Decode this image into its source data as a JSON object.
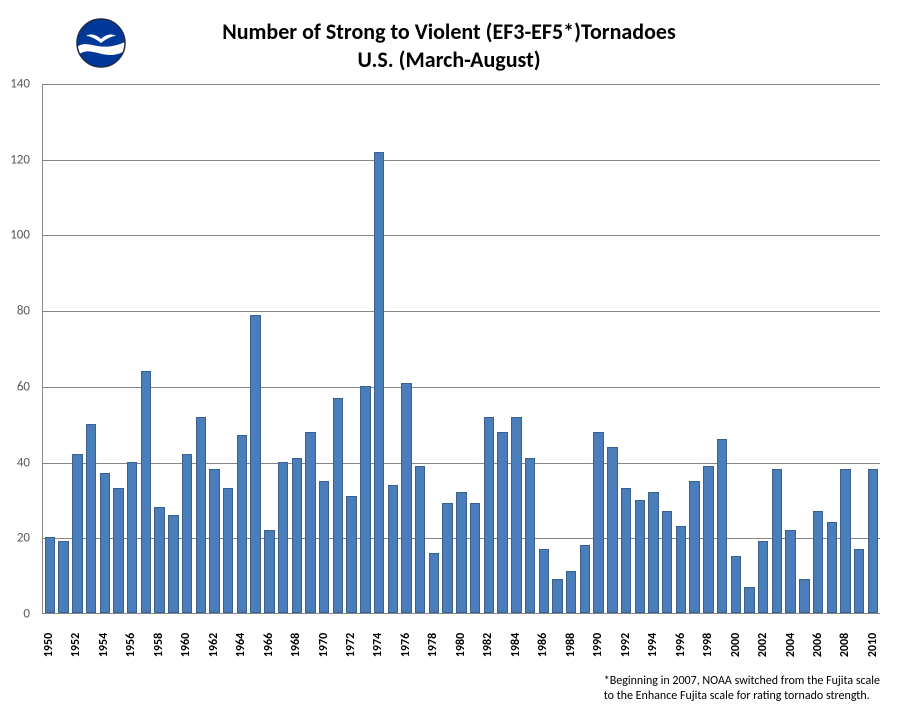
{
  "title": {
    "line1": "Number of Strong to Violent (EF3-EF5*)Tornadoes",
    "line2": "U.S. (March-August)",
    "fontsize": 22,
    "fontweight": "bold",
    "color": "#000000"
  },
  "logo": {
    "name": "noaa-logo",
    "circle_fill": "#00389a",
    "band_fill": "#ffffff",
    "ring_stroke": "#1f2a44",
    "seagull_fill": "#ffffff"
  },
  "footnote": {
    "line1": "*Beginning in 2007, NOAA switched from the Fujita scale",
    "line2": "to the Enhance Fujita scale for rating tornado strength.",
    "fontsize": 12,
    "color": "#000000"
  },
  "chart": {
    "type": "bar",
    "background_color": "#ffffff",
    "bar_fill": "#4a7ebb",
    "bar_border": "#3b5f8e",
    "bar_width_ratio": 0.76,
    "axis_color": "#868686",
    "grid_color": "#868686",
    "ylim": [
      0,
      140
    ],
    "ytick_step": 20,
    "ylabel_fontsize": 13,
    "ylabel_color": "#595959",
    "xlabel_fontsize": 12,
    "xlabel_fontweight": "bold",
    "xlabel_color": "#000000",
    "xlabel_step": 2,
    "years": [
      1950,
      1951,
      1952,
      1953,
      1954,
      1955,
      1956,
      1957,
      1958,
      1959,
      1960,
      1961,
      1962,
      1963,
      1964,
      1965,
      1966,
      1967,
      1968,
      1969,
      1970,
      1971,
      1972,
      1973,
      1974,
      1975,
      1976,
      1977,
      1978,
      1979,
      1980,
      1981,
      1982,
      1983,
      1984,
      1985,
      1986,
      1987,
      1988,
      1989,
      1990,
      1991,
      1992,
      1993,
      1994,
      1995,
      1996,
      1997,
      1998,
      1999,
      2000,
      2001,
      2002,
      2003,
      2004,
      2005,
      2006,
      2007,
      2008,
      2009,
      2010
    ],
    "values": [
      20,
      19,
      42,
      50,
      37,
      33,
      40,
      64,
      28,
      26,
      42,
      52,
      38,
      33,
      47,
      79,
      22,
      40,
      41,
      48,
      35,
      57,
      31,
      60,
      122,
      34,
      61,
      39,
      16,
      29,
      32,
      29,
      52,
      48,
      52,
      41,
      17,
      9,
      11,
      18,
      48,
      44,
      33,
      30,
      32,
      27,
      23,
      35,
      39,
      46,
      15,
      7,
      19,
      38,
      22,
      9,
      27,
      24,
      38,
      17,
      38
    ]
  }
}
